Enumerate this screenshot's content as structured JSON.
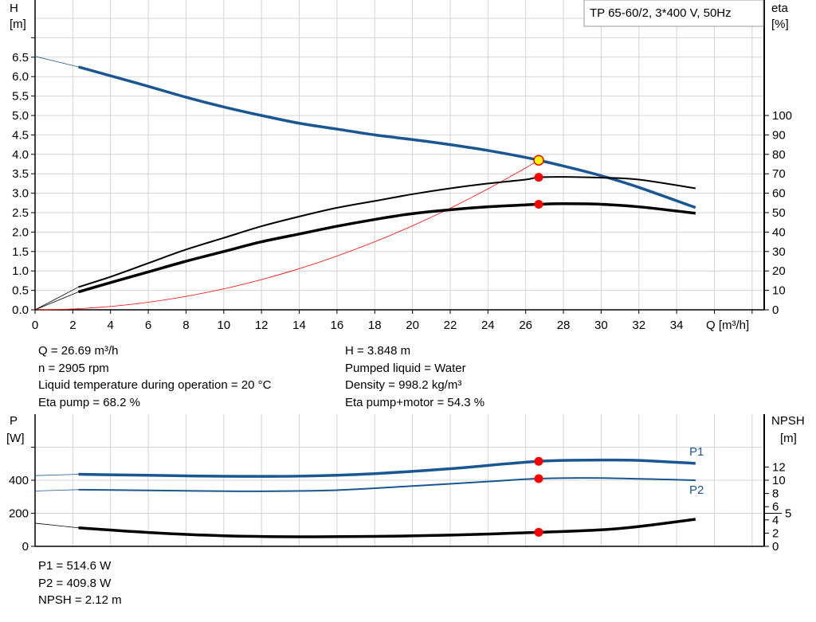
{
  "chart_data": [
    {
      "type": "line",
      "title": "TP 65-60/2, 3*400 V, 50Hz",
      "xlabel": "Q [m³/h]",
      "ylabel_left": [
        "H",
        "[m]"
      ],
      "ylabel_right": [
        "eta",
        "[%]"
      ],
      "xlim": [
        0,
        38
      ],
      "ylim_left": [
        0,
        7.5
      ],
      "ylim_right": [
        0,
        150
      ],
      "x_ticks": [
        "0",
        "2",
        "4",
        "6",
        "8",
        "10",
        "12",
        "14",
        "16",
        "18",
        "20",
        "22",
        "24",
        "26",
        "28",
        "30",
        "32",
        "34"
      ],
      "y_left_ticks": [
        "0.0",
        "0.5",
        "1.0",
        "1.5",
        "2.0",
        "2.5",
        "3.0",
        "3.5",
        "4.0",
        "4.5",
        "5.0",
        "5.5",
        "6.0",
        "6.5"
      ],
      "y_right_ticks": [
        "0",
        "10",
        "20",
        "30",
        "40",
        "50",
        "60",
        "70",
        "80",
        "90",
        "100"
      ],
      "grid": true,
      "operating_range_start_q": 2.3,
      "series": [
        {
          "id": "head",
          "axis": "left",
          "color": "#1a5792",
          "x": [
            0,
            2.3,
            4,
            6,
            8,
            10,
            12,
            14,
            16,
            18,
            20,
            22,
            24,
            26,
            26.69,
            28,
            30,
            32,
            35
          ],
          "y": [
            6.52,
            6.25,
            6.02,
            5.75,
            5.47,
            5.22,
            5.0,
            4.8,
            4.65,
            4.5,
            4.38,
            4.25,
            4.1,
            3.92,
            3.848,
            3.7,
            3.45,
            3.15,
            2.63
          ]
        },
        {
          "id": "eta-pump",
          "axis": "right",
          "color": "#000000",
          "x": [
            0,
            2.3,
            4,
            6,
            8,
            10,
            12,
            14,
            16,
            18,
            20,
            22,
            24,
            26,
            26.69,
            28,
            30,
            32,
            35
          ],
          "y": [
            0,
            11.7,
            17,
            24,
            31,
            37,
            43,
            48,
            52.5,
            56,
            59.5,
            62.5,
            65,
            67,
            68.2,
            68.4,
            68,
            67,
            62.5
          ]
        },
        {
          "id": "eta-pump-motor",
          "axis": "right",
          "color": "#000000",
          "x": [
            0,
            2.3,
            4,
            6,
            8,
            10,
            12,
            14,
            16,
            18,
            20,
            22,
            24,
            26,
            26.69,
            28,
            30,
            32,
            35
          ],
          "y": [
            0,
            9.2,
            14,
            19.5,
            25,
            30,
            35,
            39,
            43,
            46.5,
            49.5,
            51.5,
            53,
            54,
            54.3,
            54.6,
            54.3,
            53,
            49.7
          ]
        },
        {
          "id": "system-curve",
          "axis": "left",
          "color": "#ff0000",
          "type": "quadratic",
          "h_at_duty": 3.848,
          "q_at_duty": 26.69
        }
      ],
      "duty_point": {
        "q": 26.69,
        "h": 3.848,
        "eta_pump": 68.2,
        "eta_pump_motor": 54.3
      }
    },
    {
      "type": "line",
      "xlim": [
        0,
        38
      ],
      "ylabel_left": [
        "P",
        "[W]"
      ],
      "ylabel_right": [
        "NPSH",
        "[m]"
      ],
      "ylim_left": [
        0,
        800
      ],
      "ylim_right": [
        0,
        20
      ],
      "y_left_ticks": [
        "0",
        "200",
        "400"
      ],
      "y_right_ticks": [
        "0",
        "2",
        "4",
        "5",
        "6",
        "8",
        "10",
        "12"
      ],
      "grid": true,
      "series": [
        {
          "id": "P1",
          "name": "P1",
          "axis": "left",
          "color": "#1a5792",
          "x": [
            0,
            2.3,
            6,
            10,
            14,
            18,
            22,
            26.69,
            30,
            32,
            35
          ],
          "y": [
            428,
            436,
            430,
            424,
            425,
            440,
            470,
            514.6,
            522,
            520,
            502
          ]
        },
        {
          "id": "P2",
          "name": "P2",
          "axis": "left",
          "color": "#1a5792",
          "x": [
            0,
            2.3,
            8,
            12,
            16,
            20,
            24,
            26.69,
            30,
            35
          ],
          "y": [
            335,
            343,
            336,
            333,
            340,
            365,
            392,
            409.8,
            413,
            400
          ]
        },
        {
          "id": "NPSH",
          "axis": "right",
          "color": "#000000",
          "x": [
            0,
            2.3,
            6,
            10,
            14,
            18,
            22,
            26.69,
            30,
            32,
            35
          ],
          "y": [
            3.5,
            2.8,
            2.1,
            1.6,
            1.45,
            1.5,
            1.7,
            2.12,
            2.5,
            3.0,
            4.1
          ]
        }
      ],
      "duty_point": {
        "q": 26.69,
        "p1": 514.6,
        "p2": 409.8,
        "npsh": 2.12
      }
    }
  ],
  "info_top_left": [
    "Q = 26.69 m³/h",
    "n = 2905 rpm",
    "Liquid temperature during operation = 20 °C",
    "Eta pump = 68.2 %"
  ],
  "info_top_right": [
    "H = 3.848 m",
    "Pumped liquid = Water",
    "Density = 998.2 kg/m³",
    "Eta pump+motor = 54.3 %"
  ],
  "info_bottom": [
    "P1 = 514.6 W",
    "P2 = 409.8 W",
    "NPSH = 2.12 m"
  ],
  "colors": {
    "grid": "#d4d4d4",
    "duty_marker": "#ff0000",
    "duty_marker_head": "#ffff00"
  }
}
